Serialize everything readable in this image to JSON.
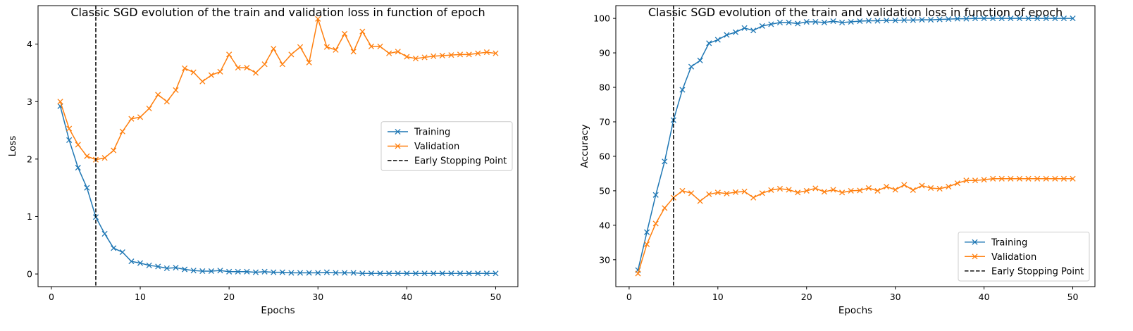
{
  "chart_data": [
    {
      "type": "line",
      "title": "Classic SGD evolution of the train and validation loss in function of epoch",
      "xlabel": "Epochs",
      "ylabel": "Loss",
      "xlim": [
        -1.5,
        52.5
      ],
      "ylim": [
        -0.22,
        4.67
      ],
      "xticks": [
        0,
        10,
        20,
        30,
        40,
        50
      ],
      "yticks": [
        0,
        1,
        2,
        3,
        4
      ],
      "grid": false,
      "legend_position": "center-right",
      "x": [
        1,
        2,
        3,
        4,
        5,
        6,
        7,
        8,
        9,
        10,
        11,
        12,
        13,
        14,
        15,
        16,
        17,
        18,
        19,
        20,
        21,
        22,
        23,
        24,
        25,
        26,
        27,
        28,
        29,
        30,
        31,
        32,
        33,
        34,
        35,
        36,
        37,
        38,
        39,
        40,
        41,
        42,
        43,
        44,
        45,
        46,
        47,
        48,
        49,
        50
      ],
      "series": [
        {
          "name": "Training",
          "color": "#1f77b4",
          "marker": "x",
          "values": [
            2.92,
            2.33,
            1.85,
            1.5,
            0.99,
            0.7,
            0.45,
            0.38,
            0.22,
            0.19,
            0.15,
            0.13,
            0.1,
            0.11,
            0.08,
            0.06,
            0.05,
            0.05,
            0.06,
            0.04,
            0.04,
            0.04,
            0.03,
            0.04,
            0.03,
            0.03,
            0.02,
            0.02,
            0.02,
            0.02,
            0.03,
            0.02,
            0.02,
            0.02,
            0.01,
            0.01,
            0.01,
            0.01,
            0.01,
            0.01,
            0.01,
            0.01,
            0.01,
            0.01,
            0.01,
            0.01,
            0.01,
            0.01,
            0.01,
            0.01
          ]
        },
        {
          "name": "Validation",
          "color": "#ff7f0e",
          "marker": "x",
          "values": [
            3.0,
            2.53,
            2.25,
            2.05,
            1.99,
            2.02,
            2.15,
            2.48,
            2.7,
            2.73,
            2.88,
            3.12,
            3.0,
            3.2,
            3.58,
            3.51,
            3.35,
            3.46,
            3.52,
            3.82,
            3.59,
            3.59,
            3.5,
            3.65,
            3.92,
            3.65,
            3.82,
            3.95,
            3.68,
            4.44,
            3.95,
            3.9,
            4.18,
            3.87,
            4.22,
            3.96,
            3.96,
            3.84,
            3.87,
            3.78,
            3.75,
            3.77,
            3.79,
            3.8,
            3.81,
            3.82,
            3.82,
            3.84,
            3.86,
            3.84
          ]
        }
      ],
      "vline": {
        "name": "Early Stopping Point",
        "x": 5,
        "color": "#000000",
        "style": "dashed"
      }
    },
    {
      "type": "line",
      "title": "Classic SGD evolution of the train and validation loss in function of epoch",
      "xlabel": "Epochs",
      "ylabel": "Accuracy",
      "xlim": [
        -1.5,
        52.5
      ],
      "ylim": [
        22.2,
        103.7
      ],
      "xticks": [
        0,
        10,
        20,
        30,
        40,
        50
      ],
      "yticks": [
        30,
        40,
        50,
        60,
        70,
        80,
        90,
        100
      ],
      "grid": false,
      "legend_position": "lower-right",
      "x": [
        1,
        2,
        3,
        4,
        5,
        6,
        7,
        8,
        9,
        10,
        11,
        12,
        13,
        14,
        15,
        16,
        17,
        18,
        19,
        20,
        21,
        22,
        23,
        24,
        25,
        26,
        27,
        28,
        29,
        30,
        31,
        32,
        33,
        34,
        35,
        36,
        37,
        38,
        39,
        40,
        41,
        42,
        43,
        44,
        45,
        46,
        47,
        48,
        49,
        50
      ],
      "series": [
        {
          "name": "Training",
          "color": "#1f77b4",
          "marker": "x",
          "values": [
            27.0,
            38.0,
            48.8,
            58.5,
            70.5,
            79.3,
            86.0,
            87.8,
            92.8,
            93.8,
            95.2,
            96.0,
            97.2,
            96.5,
            97.8,
            98.3,
            98.8,
            98.8,
            98.5,
            99.0,
            99.0,
            98.8,
            99.2,
            98.8,
            99.0,
            99.2,
            99.3,
            99.3,
            99.4,
            99.4,
            99.5,
            99.5,
            99.6,
            99.6,
            99.7,
            99.8,
            99.9,
            99.9,
            100.0,
            100.0,
            100.0,
            100.0,
            100.0,
            100.0,
            100.0,
            100.0,
            100.0,
            100.0,
            100.0,
            100.0
          ]
        },
        {
          "name": "Validation",
          "color": "#ff7f0e",
          "marker": "x",
          "values": [
            26.0,
            34.5,
            40.5,
            45.0,
            48.0,
            50.0,
            49.3,
            47.0,
            49.0,
            49.5,
            49.2,
            49.6,
            49.8,
            48.0,
            49.3,
            50.2,
            50.6,
            50.3,
            49.5,
            50.0,
            50.7,
            49.7,
            50.3,
            49.5,
            50.0,
            50.1,
            50.8,
            50.0,
            51.2,
            50.3,
            51.7,
            50.2,
            51.5,
            50.8,
            50.6,
            51.2,
            52.2,
            53.0,
            53.0,
            53.2,
            53.5,
            53.5,
            53.5,
            53.5,
            53.5,
            53.5,
            53.5,
            53.5,
            53.5,
            53.5
          ]
        }
      ],
      "vline": {
        "name": "Early Stopping Point",
        "x": 5,
        "color": "#000000",
        "style": "dashed"
      }
    }
  ]
}
